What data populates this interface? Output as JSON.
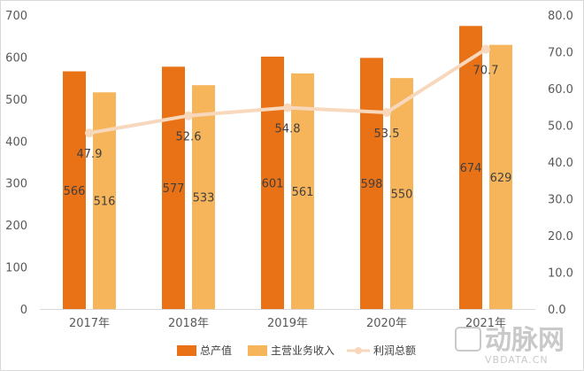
{
  "chart_data": {
    "type": "bar",
    "categories": [
      "2017年",
      "2018年",
      "2019年",
      "2020年",
      "2021年"
    ],
    "series": [
      {
        "name": "总产值",
        "type": "bar",
        "axis": "left",
        "color": "#e97116",
        "values": [
          566,
          577,
          601,
          598,
          674
        ]
      },
      {
        "name": "主营业务收入",
        "type": "bar",
        "axis": "left",
        "color": "#f6b55b",
        "values": [
          516,
          533,
          561,
          550,
          629
        ]
      },
      {
        "name": "利润总额",
        "type": "line",
        "axis": "right",
        "color": "#f8d8bd",
        "values": [
          47.9,
          52.6,
          54.8,
          53.5,
          70.7
        ]
      }
    ],
    "y_left": {
      "min": 0,
      "max": 700,
      "ticks": [
        "0",
        "100",
        "200",
        "300",
        "400",
        "500",
        "600",
        "700"
      ]
    },
    "y_right": {
      "min": 0,
      "max": 80,
      "ticks": [
        "0.0",
        "10.0",
        "20.0",
        "30.0",
        "40.0",
        "50.0",
        "60.0",
        "70.0",
        "80.0"
      ]
    },
    "grid": false,
    "legend_position": "bottom"
  },
  "watermark": {
    "brand": "动脉网",
    "url": "VBDATA.CN"
  }
}
